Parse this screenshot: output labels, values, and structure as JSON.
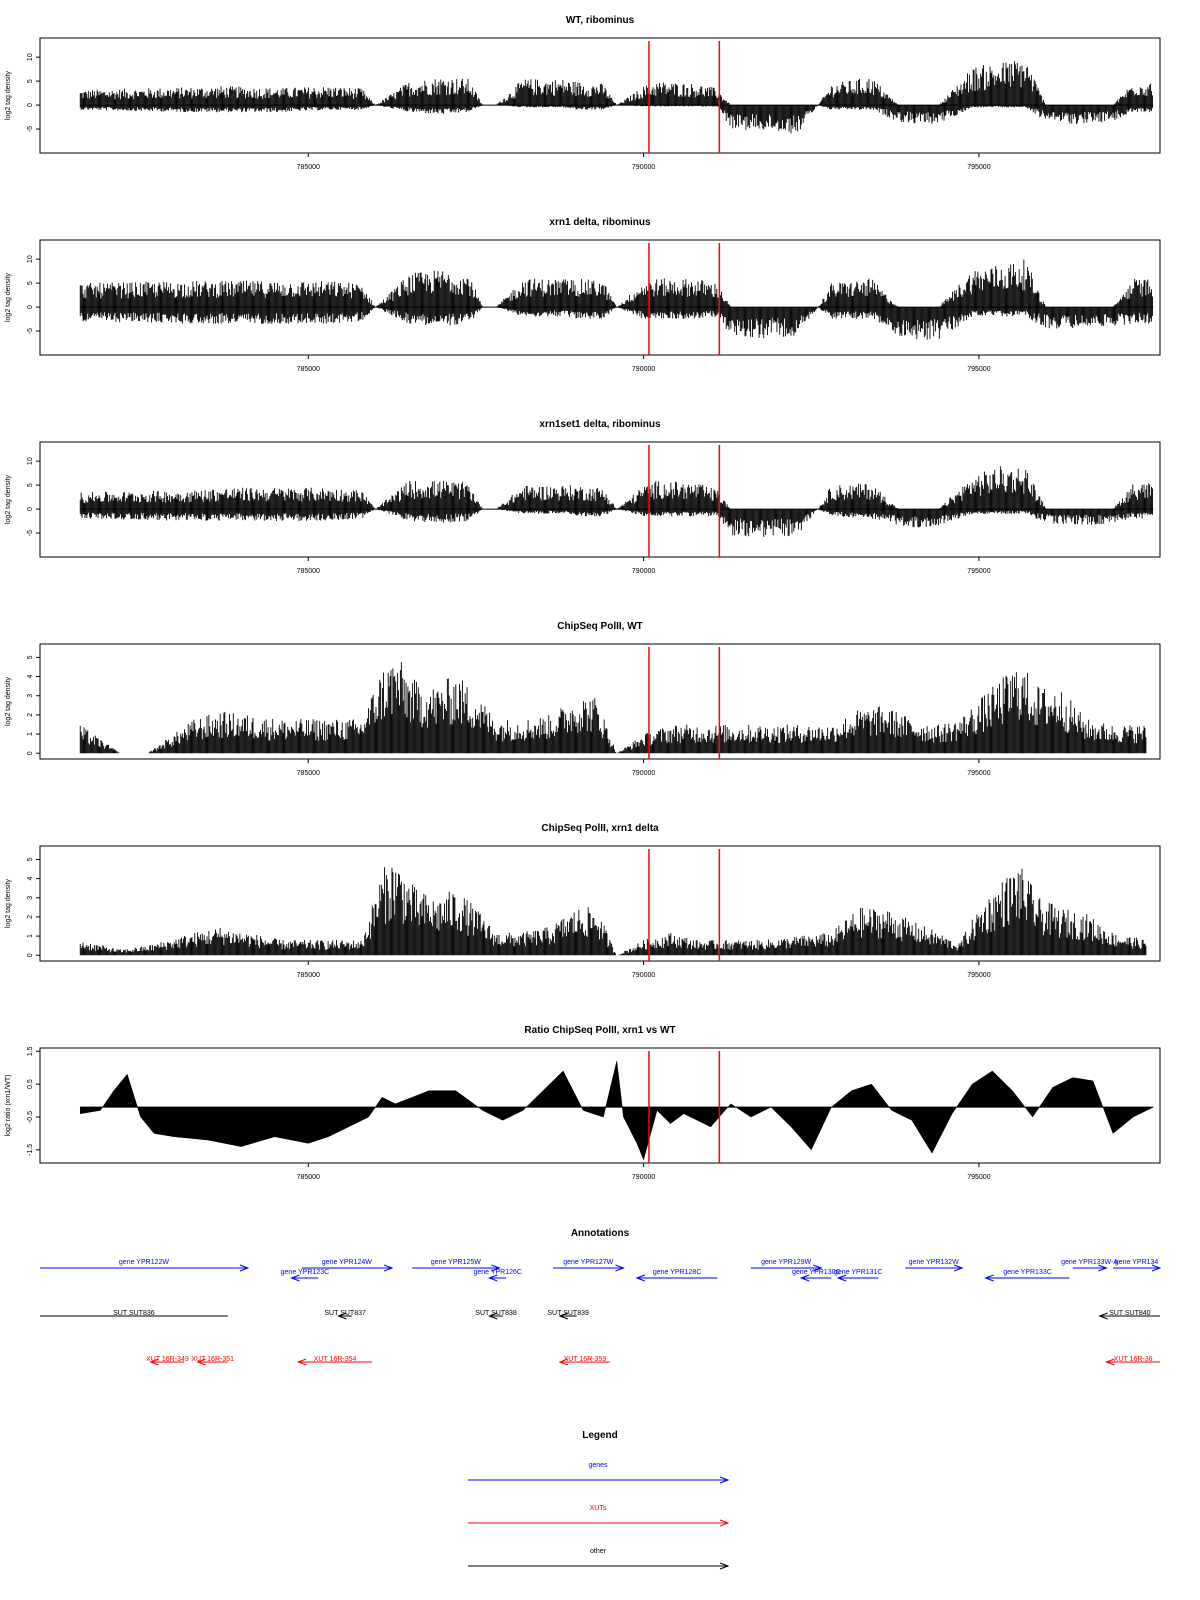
{
  "figure": {
    "background": "#ffffff",
    "marker_color": "#ff0000",
    "gene_color": "#0000ff",
    "xut_color": "#ff0000",
    "other_color": "#000000"
  },
  "chart_data": [
    {
      "type": "bar",
      "title": "WT, ribominus",
      "xlabel": "",
      "ylabel": "log2 tag density",
      "xlim": [
        781000,
        797700
      ],
      "ylim": [
        -10,
        14
      ],
      "xticks": [
        "785000",
        "790000",
        "795000"
      ],
      "yticks": [
        "-5",
        "0",
        "5",
        "10"
      ],
      "markers": [
        790080,
        791130
      ],
      "profile": {
        "x": [
          781600,
          783300,
          783700,
          784600,
          785300,
          785800,
          786000,
          786500,
          787000,
          787400,
          787600,
          787800,
          788200,
          788800,
          789000,
          789400,
          789600,
          790000,
          790200,
          790800,
          791100,
          791300,
          791800,
          792300,
          792600,
          792800,
          793400,
          793800,
          794100,
          794400,
          794900,
          795300,
          795700,
          796000,
          796500,
          797000,
          797300,
          797600
        ],
        "pos": [
          3.2,
          3.8,
          4,
          3.6,
          4,
          3.5,
          0,
          5,
          6,
          5.5,
          0,
          0,
          5.5,
          5.5,
          5,
          4.5,
          0,
          4,
          5,
          4.5,
          3.5,
          0,
          0,
          0,
          0,
          4.5,
          6,
          0,
          0,
          0,
          8,
          9,
          10,
          0,
          0,
          0,
          5,
          5
        ],
        "neg": [
          -1,
          -1.5,
          -1.5,
          -1.5,
          -1,
          -1,
          0,
          -1.5,
          -2,
          -1.5,
          0,
          0,
          -0.5,
          -0.5,
          -1,
          -1,
          0,
          -0.3,
          -0.3,
          -0.3,
          -0.3,
          -5,
          -5.5,
          -6,
          0,
          -1,
          -1,
          -3.5,
          -4,
          -4,
          -0.5,
          -0.5,
          -0.5,
          -3.5,
          -4,
          -3.5,
          -1.5,
          -1.5
        ]
      }
    },
    {
      "type": "bar",
      "title": "xrn1 delta, ribominus",
      "xlabel": "",
      "ylabel": "log2 tag density",
      "xlim": [
        781000,
        797700
      ],
      "ylim": [
        -10,
        14
      ],
      "xticks": [
        "785000",
        "790000",
        "795000"
      ],
      "yticks": [
        "-5",
        "0",
        "5",
        "10"
      ],
      "markers": [
        790080,
        791130
      ],
      "profile": {
        "x": [
          781600,
          783300,
          783700,
          784600,
          785300,
          785800,
          786000,
          786500,
          787000,
          787400,
          787600,
          787800,
          788200,
          788800,
          789000,
          789400,
          789600,
          790000,
          790200,
          790800,
          791100,
          791300,
          791800,
          792300,
          792600,
          792800,
          793400,
          793800,
          794100,
          794400,
          794900,
          795300,
          795700,
          796000,
          796500,
          797000,
          797300,
          797600
        ],
        "pos": [
          5,
          5.5,
          5.5,
          5.5,
          5.5,
          5,
          0,
          7,
          8,
          7,
          0,
          0,
          6,
          6,
          6,
          5.5,
          0,
          5.5,
          6,
          6,
          5,
          0,
          0,
          0,
          0,
          5,
          6,
          0,
          0,
          0,
          8,
          9,
          10,
          0,
          0,
          0,
          6,
          6
        ],
        "neg": [
          -3,
          -3.5,
          -3.5,
          -3.5,
          -3.5,
          -3,
          0,
          -3.5,
          -4,
          -3.5,
          0,
          0,
          -2,
          -2,
          -2.5,
          -2.5,
          0,
          -2.5,
          -2.5,
          -2.5,
          -2,
          -6,
          -6.5,
          -6,
          0,
          -2.5,
          -2.5,
          -6,
          -7,
          -7,
          -2,
          -2,
          -2,
          -4.5,
          -4.5,
          -4,
          -3.5,
          -3.5
        ]
      }
    },
    {
      "type": "bar",
      "title": "xrn1set1 delta, ribominus",
      "xlabel": "",
      "ylabel": "log2 tag density",
      "xlim": [
        781000,
        797700
      ],
      "ylim": [
        -10,
        14
      ],
      "xticks": [
        "785000",
        "790000",
        "795000"
      ],
      "yticks": [
        "-5",
        "0",
        "5",
        "10"
      ],
      "markers": [
        790080,
        791130
      ],
      "profile": {
        "x": [
          781600,
          783300,
          783700,
          784600,
          785300,
          785800,
          786000,
          786500,
          787000,
          787400,
          787600,
          787800,
          788200,
          788800,
          789000,
          789400,
          789600,
          790000,
          790200,
          790800,
          791100,
          791300,
          791800,
          792300,
          792600,
          792800,
          793400,
          793800,
          794100,
          794400,
          794900,
          795300,
          795700,
          796000,
          796500,
          797000,
          797300,
          797600
        ],
        "pos": [
          3.5,
          4,
          4.5,
          4.5,
          4.5,
          4,
          0,
          6,
          6,
          5.5,
          0,
          0,
          5,
          5,
          5,
          4.5,
          0,
          5,
          6,
          5.5,
          4,
          0,
          0,
          0,
          0,
          5,
          5.5,
          0,
          0,
          0,
          7,
          9,
          9,
          0,
          0,
          0,
          5.5,
          5.5
        ],
        "neg": [
          -2,
          -2.5,
          -2.5,
          -2.5,
          -2.5,
          -2,
          0,
          -2.5,
          -3,
          -2.5,
          0,
          0,
          -1,
          -1,
          -1.5,
          -1.5,
          0,
          -1.5,
          -1.5,
          -1.5,
          -1.5,
          -5.5,
          -6,
          -5.5,
          0,
          -1.5,
          -2,
          -3.5,
          -4,
          -3.5,
          -1,
          -1,
          -1,
          -3,
          -3.5,
          -3,
          -2,
          -2
        ]
      }
    },
    {
      "type": "bar",
      "title": "ChipSeq PolII, WT",
      "xlabel": "",
      "ylabel": "log2 tag density",
      "xlim": [
        781000,
        797700
      ],
      "ylim": [
        -0.3,
        5.7
      ],
      "xticks": [
        "785000",
        "790000",
        "795000"
      ],
      "yticks": [
        "0",
        "1",
        "2",
        "3",
        "4",
        "5"
      ],
      "markers": [
        790080,
        791130
      ],
      "profile": {
        "x": [
          781600,
          782200,
          782600,
          783300,
          783700,
          784600,
          785300,
          785800,
          786100,
          786300,
          786600,
          786900,
          787200,
          787500,
          787800,
          788200,
          788600,
          789000,
          789300,
          789600,
          790000,
          790400,
          790800,
          791300,
          791800,
          792300,
          792800,
          793200,
          793600,
          794000,
          794400,
          794700,
          795000,
          795300,
          795600,
          795900,
          796200,
          796600,
          797000,
          797500
        ],
        "pos": [
          1.5,
          0,
          0,
          1.8,
          2.2,
          1.8,
          1.8,
          1.8,
          4.5,
          5.2,
          3.8,
          3.5,
          4.2,
          3.2,
          1.8,
          1.8,
          2,
          3,
          3,
          0,
          1,
          1.5,
          1.5,
          1.5,
          1.5,
          1.5,
          1.5,
          2.3,
          2.5,
          1.8,
          1.5,
          1.8,
          2.8,
          3.8,
          4.8,
          3.5,
          3.5,
          1.8,
          1.5,
          1.5
        ],
        "neg": []
      }
    },
    {
      "type": "bar",
      "title": "ChipSeq PolII, xrn1 delta",
      "xlabel": "",
      "ylabel": "log2 tag density",
      "xlim": [
        781000,
        797700
      ],
      "ylim": [
        -0.3,
        5.7
      ],
      "xticks": [
        "785000",
        "790000",
        "795000"
      ],
      "yticks": [
        "0",
        "1",
        "2",
        "3",
        "4",
        "5"
      ],
      "markers": [
        790080,
        791130
      ],
      "profile": {
        "x": [
          781600,
          782200,
          782600,
          783300,
          783700,
          784600,
          785300,
          785800,
          786100,
          786300,
          786600,
          786900,
          787200,
          787500,
          787800,
          788200,
          788600,
          789000,
          789300,
          789600,
          790000,
          790400,
          790800,
          791300,
          791800,
          792300,
          792800,
          793200,
          793600,
          794000,
          794400,
          794700,
          795000,
          795300,
          795600,
          795900,
          796200,
          796600,
          797000,
          797500
        ],
        "pos": [
          0.8,
          0.3,
          0.5,
          1.2,
          1.5,
          0.8,
          0.8,
          0.8,
          4.5,
          5.2,
          3.5,
          3,
          3.5,
          2.5,
          1.2,
          1.2,
          1.5,
          2.5,
          2.5,
          0,
          0.8,
          1.2,
          0.8,
          0.8,
          0.8,
          1,
          1.2,
          2.5,
          2.5,
          1.8,
          1.2,
          0.6,
          2.5,
          3.8,
          4.8,
          3,
          2.5,
          2.2,
          1.2,
          0.8
        ],
        "neg": []
      }
    },
    {
      "type": "area",
      "title": "Ratio ChipSeq PolII, xrn1 vs WT",
      "xlabel": "",
      "ylabel": "log2 ratio (xrn1/WT)",
      "xlim": [
        781000,
        797700
      ],
      "ylim": [
        -1.9,
        1.6
      ],
      "xticks": [
        "785000",
        "790000",
        "795000"
      ],
      "yticks": [
        "-1.5",
        "-0.5",
        "0.5",
        "1.5"
      ],
      "markers": [
        790080,
        791130
      ],
      "baseline": -0.2,
      "profile": {
        "x": [
          781600,
          781900,
          782100,
          782300,
          782500,
          782700,
          783000,
          783500,
          784000,
          784500,
          785000,
          785300,
          785600,
          785900,
          786100,
          786300,
          786800,
          787200,
          787600,
          787900,
          788200,
          788500,
          788800,
          789100,
          789400,
          789600,
          789700,
          789900,
          790000,
          790200,
          790400,
          790600,
          790800,
          791000,
          791300,
          791600,
          791900,
          792200,
          792500,
          792800,
          793100,
          793400,
          793700,
          794000,
          794300,
          794600,
          794900,
          795200,
          795500,
          795800,
          796100,
          796400,
          796700,
          797000,
          797300,
          797600
        ],
        "y": [
          -0.4,
          -0.3,
          0.3,
          0.8,
          -0.5,
          -1,
          -1.1,
          -1.2,
          -1.4,
          -1.1,
          -1.3,
          -1.1,
          -0.8,
          -0.5,
          0.1,
          -0.1,
          0.3,
          0.3,
          -0.3,
          -0.6,
          -0.3,
          0.3,
          0.9,
          -0.3,
          -0.5,
          1.2,
          -0.5,
          -1.3,
          -1.8,
          -0.3,
          -0.7,
          -0.4,
          -0.6,
          -0.8,
          -0.1,
          -0.5,
          -0.2,
          -0.8,
          -1.5,
          -0.2,
          0.3,
          0.5,
          -0.3,
          -0.6,
          -1.6,
          -0.4,
          0.5,
          0.9,
          0.3,
          -0.5,
          0.4,
          0.7,
          0.6,
          -1,
          -0.5,
          -0.2
        ]
      }
    }
  ],
  "annotations": {
    "title": "Annotations",
    "genes": [
      {
        "label": "gene YPR122W",
        "x1": 781000,
        "x2": 784100,
        "dir": "right",
        "row": 1
      },
      {
        "label": "gene YPR124W",
        "x1": 784900,
        "x2": 786250,
        "dir": "right",
        "row": 1
      },
      {
        "label": "gene YPR123C",
        "x1": 784750,
        "x2": 785150,
        "dir": "left",
        "row": 2
      },
      {
        "label": "gene YPR125W",
        "x1": 786550,
        "x2": 787850,
        "dir": "right",
        "row": 1
      },
      {
        "label": "gene YPR126C",
        "x1": 787700,
        "x2": 787950,
        "dir": "left",
        "row": 2
      },
      {
        "label": "gene YPR127W",
        "x1": 788650,
        "x2": 789700,
        "dir": "right",
        "row": 1
      },
      {
        "label": "gene YPR128C",
        "x1": 789900,
        "x2": 791100,
        "dir": "left",
        "row": 2
      },
      {
        "label": "gene YPR129W",
        "x1": 791600,
        "x2": 792650,
        "dir": "right",
        "row": 1
      },
      {
        "label": "gene YPR130C",
        "x1": 792350,
        "x2": 792800,
        "dir": "left",
        "row": 2
      },
      {
        "label": "gene YPR131C",
        "x1": 792900,
        "x2": 793500,
        "dir": "left",
        "row": 2
      },
      {
        "label": "gene YPR132W",
        "x1": 793900,
        "x2": 794750,
        "dir": "right",
        "row": 1
      },
      {
        "label": "gene YPR133C",
        "x1": 795100,
        "x2": 796350,
        "dir": "left",
        "row": 2
      },
      {
        "label": "gene YPR133W-A",
        "x1": 796400,
        "x2": 796900,
        "dir": "right",
        "row": 1
      },
      {
        "label": "gene YPR134",
        "x1": 797000,
        "x2": 797700,
        "dir": "right",
        "row": 1
      }
    ],
    "suts": [
      {
        "label": "SUT SUT836",
        "x1": 781000,
        "x2": 783800,
        "dir": "none"
      },
      {
        "label": "SUT SUT837",
        "x1": 785450,
        "x2": 785650,
        "dir": "left"
      },
      {
        "label": "SUT SUT838",
        "x1": 787700,
        "x2": 787900,
        "dir": "left"
      },
      {
        "label": "SUT SUT839",
        "x1": 788750,
        "x2": 789000,
        "dir": "left"
      },
      {
        "label": "SUT SUT840",
        "x1": 796800,
        "x2": 797700,
        "dir": "left"
      }
    ],
    "xuts": [
      {
        "label": "XUT 16R-349",
        "x1": 782650,
        "x2": 783150,
        "dir": "left"
      },
      {
        "label": "XUT 16R-351",
        "x1": 783350,
        "x2": 783800,
        "dir": "left"
      },
      {
        "label": "XUT 16R-354",
        "x1": 784850,
        "x2": 785950,
        "dir": "left"
      },
      {
        "label": "XUT 16R-359",
        "x1": 788750,
        "x2": 789500,
        "dir": "left"
      },
      {
        "label": "XUT 16R-36",
        "x1": 796900,
        "x2": 797700,
        "dir": "left"
      }
    ]
  },
  "legend": {
    "title": "Legend",
    "items": [
      {
        "label": "genes",
        "color": "#0000ff"
      },
      {
        "label": "XUTs",
        "color": "#ff0000"
      },
      {
        "label": "other",
        "color": "#000000"
      }
    ]
  }
}
